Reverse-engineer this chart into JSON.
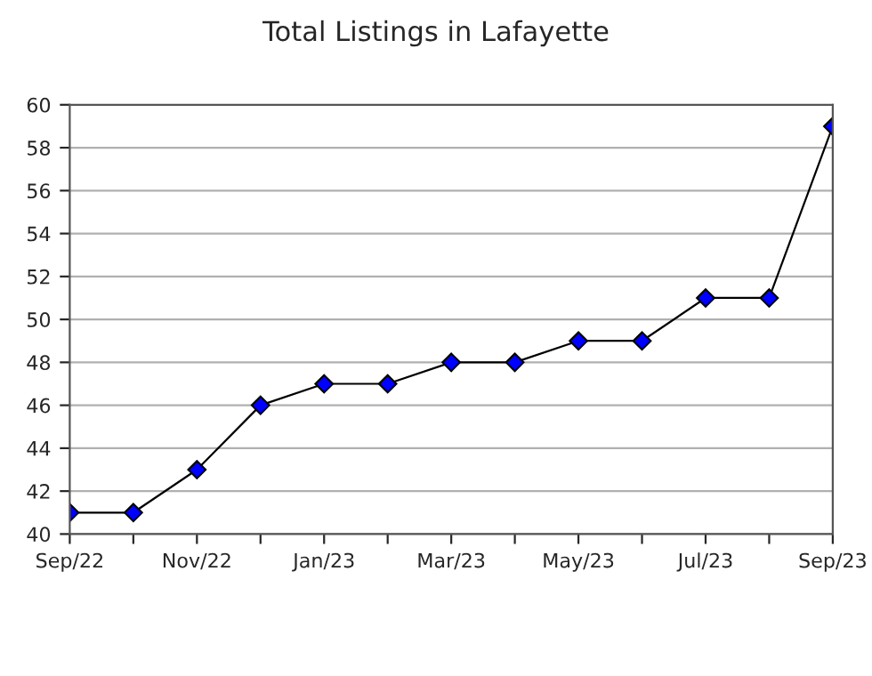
{
  "chart_data": {
    "type": "line",
    "title": "Total Listings in Lafayette",
    "categories": [
      "Sep/22",
      null,
      "Nov/22",
      null,
      "Jan/23",
      null,
      "Mar/23",
      null,
      "May/23",
      null,
      "Jul/23",
      null,
      "Sep/23"
    ],
    "series": [
      {
        "color": "#0000ff",
        "values": [
          41,
          41,
          43,
          46,
          47,
          47,
          48,
          48,
          49,
          49,
          51,
          51,
          59
        ]
      }
    ],
    "ylim": [
      40,
      60
    ],
    "yticks": [
      40,
      42,
      44,
      46,
      48,
      50,
      52,
      54,
      56,
      58,
      60
    ],
    "grid": "y",
    "marker": "diamond",
    "line_style": "solid"
  }
}
